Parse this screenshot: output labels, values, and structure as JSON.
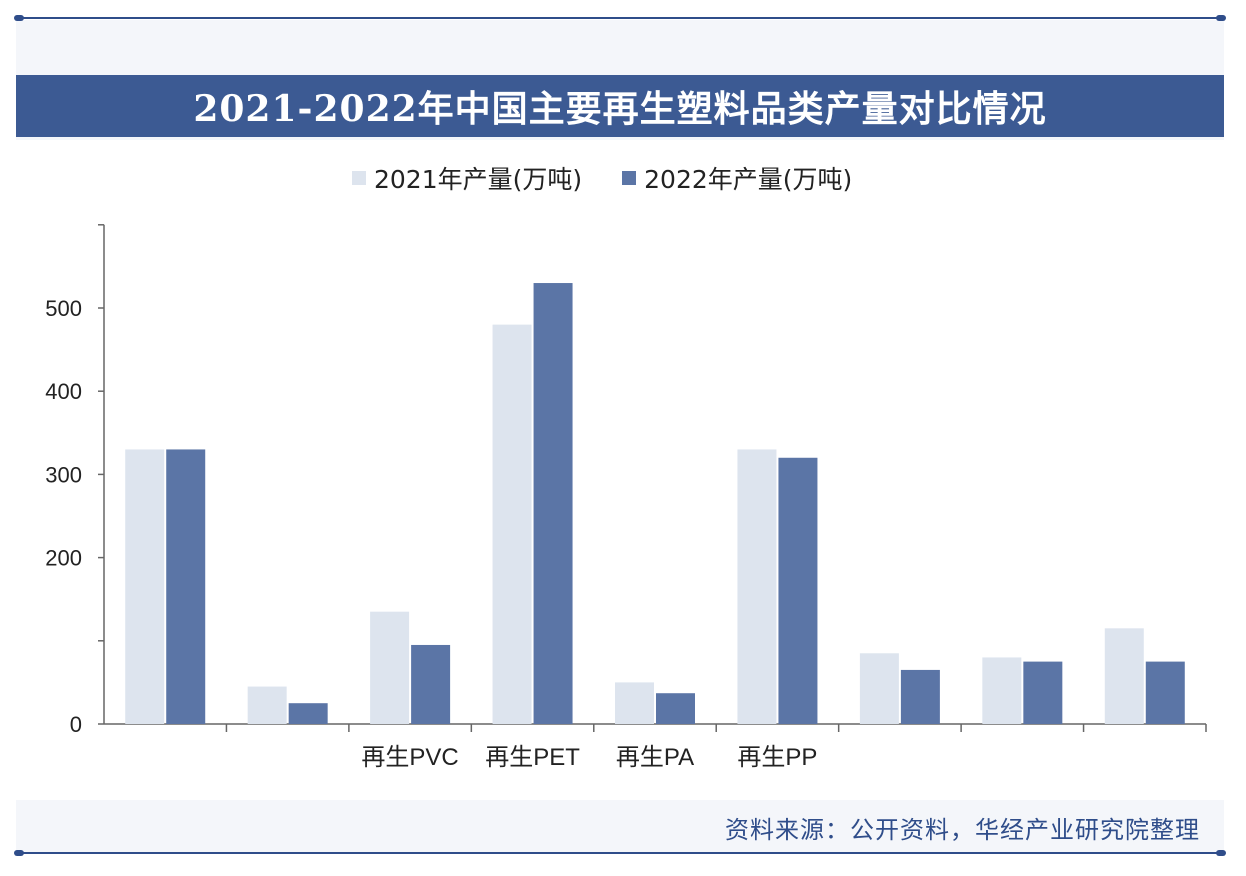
{
  "title": "2021-2022年中国主要再生塑料品类产量对比情况",
  "source": "资料来源：公开资料，华经产业研究院整理",
  "chart_data": {
    "type": "bar",
    "title": "2021-2022年中国主要再生塑料品类产量对比情况",
    "xlabel": "",
    "ylabel": "",
    "ylim": [
      0,
      600
    ],
    "yticks": [
      {
        "value": 0,
        "label": "0"
      },
      {
        "value": 100,
        "label": ""
      },
      {
        "value": 200,
        "label": "200"
      },
      {
        "value": 300,
        "label": "300"
      },
      {
        "value": 400,
        "label": "400"
      },
      {
        "value": 500,
        "label": "500"
      },
      {
        "value": 600,
        "label": ""
      }
    ],
    "categories": [
      "",
      "",
      "再生PVC",
      "再生PET",
      "再生PA",
      "再生PP",
      "",
      "",
      ""
    ],
    "series": [
      {
        "name": "2021年产量(万吨)",
        "color": "#dde4ee",
        "values": [
          330,
          45,
          135,
          480,
          50,
          330,
          85,
          80,
          115
        ]
      },
      {
        "name": "2022年产量(万吨)",
        "color": "#5b75a6",
        "values": [
          330,
          25,
          95,
          530,
          37,
          320,
          65,
          75,
          75
        ]
      }
    ],
    "legend": "top-center",
    "grid": false
  },
  "colors": {
    "title_bar": "#3c5a93",
    "accent": "#2f4d8a",
    "axis": "#666666"
  }
}
